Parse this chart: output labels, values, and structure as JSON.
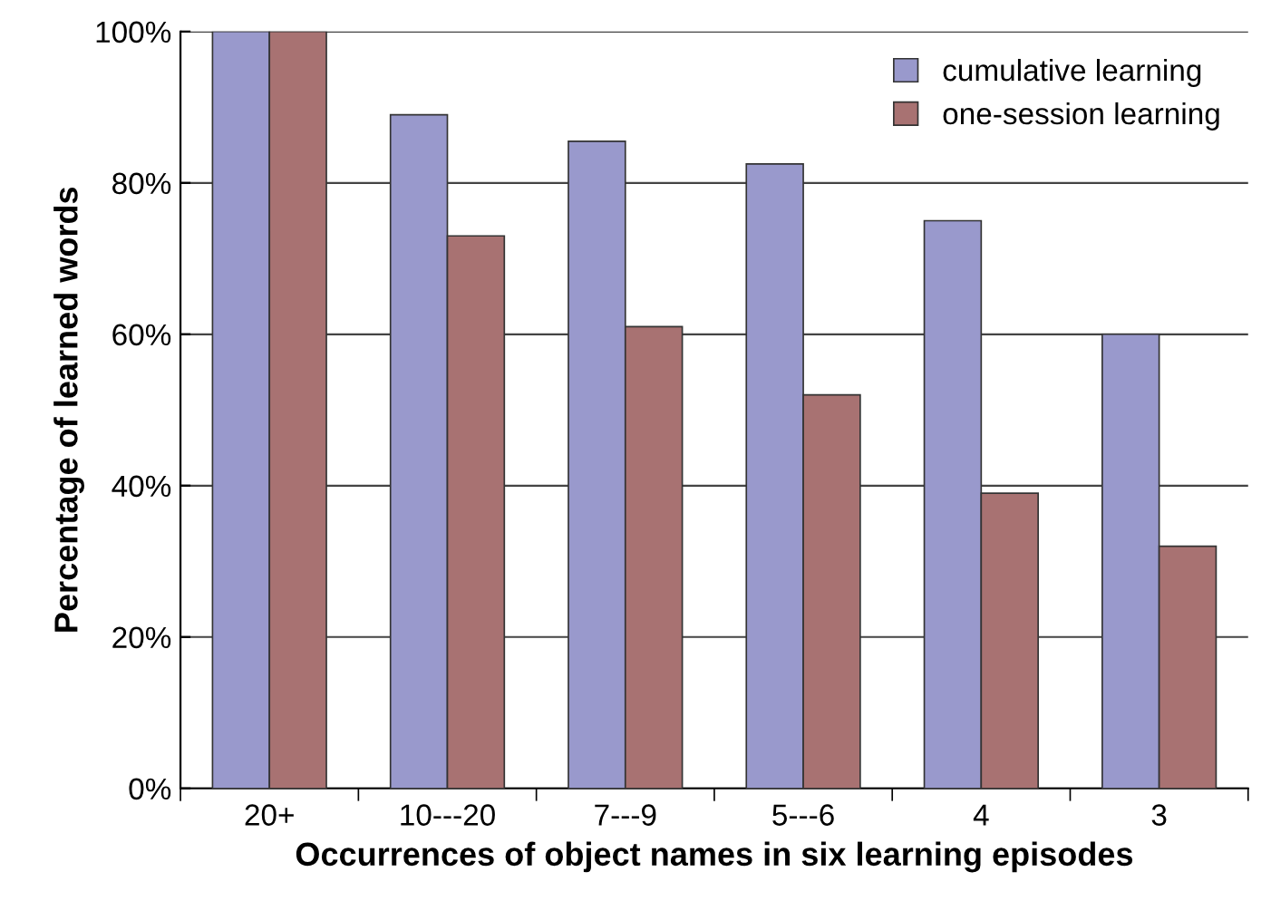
{
  "chart_data": {
    "type": "bar",
    "xlabel": "Occurrences of object names in six learning episodes",
    "ylabel": "Percentage of learned words",
    "categories": [
      "20+",
      "10---20",
      "7---9",
      "5---6",
      "4",
      "3"
    ],
    "series": [
      {
        "name": "cumulative learning",
        "color": "#9999cc",
        "values": [
          100,
          89,
          85.5,
          82.5,
          75,
          60
        ]
      },
      {
        "name": "one-session learning",
        "color": "#a87272",
        "values": [
          100,
          73,
          61,
          52,
          39,
          32
        ]
      }
    ],
    "ylim": [
      0,
      100
    ],
    "yticks": [
      {
        "value": 0,
        "label": "0%"
      },
      {
        "value": 20,
        "label": "20%"
      },
      {
        "value": 40,
        "label": "40%"
      },
      {
        "value": 60,
        "label": "60%"
      },
      {
        "value": 80,
        "label": "80%"
      },
      {
        "value": 100,
        "label": "100%"
      }
    ],
    "grid": "y",
    "legend": "top right"
  }
}
